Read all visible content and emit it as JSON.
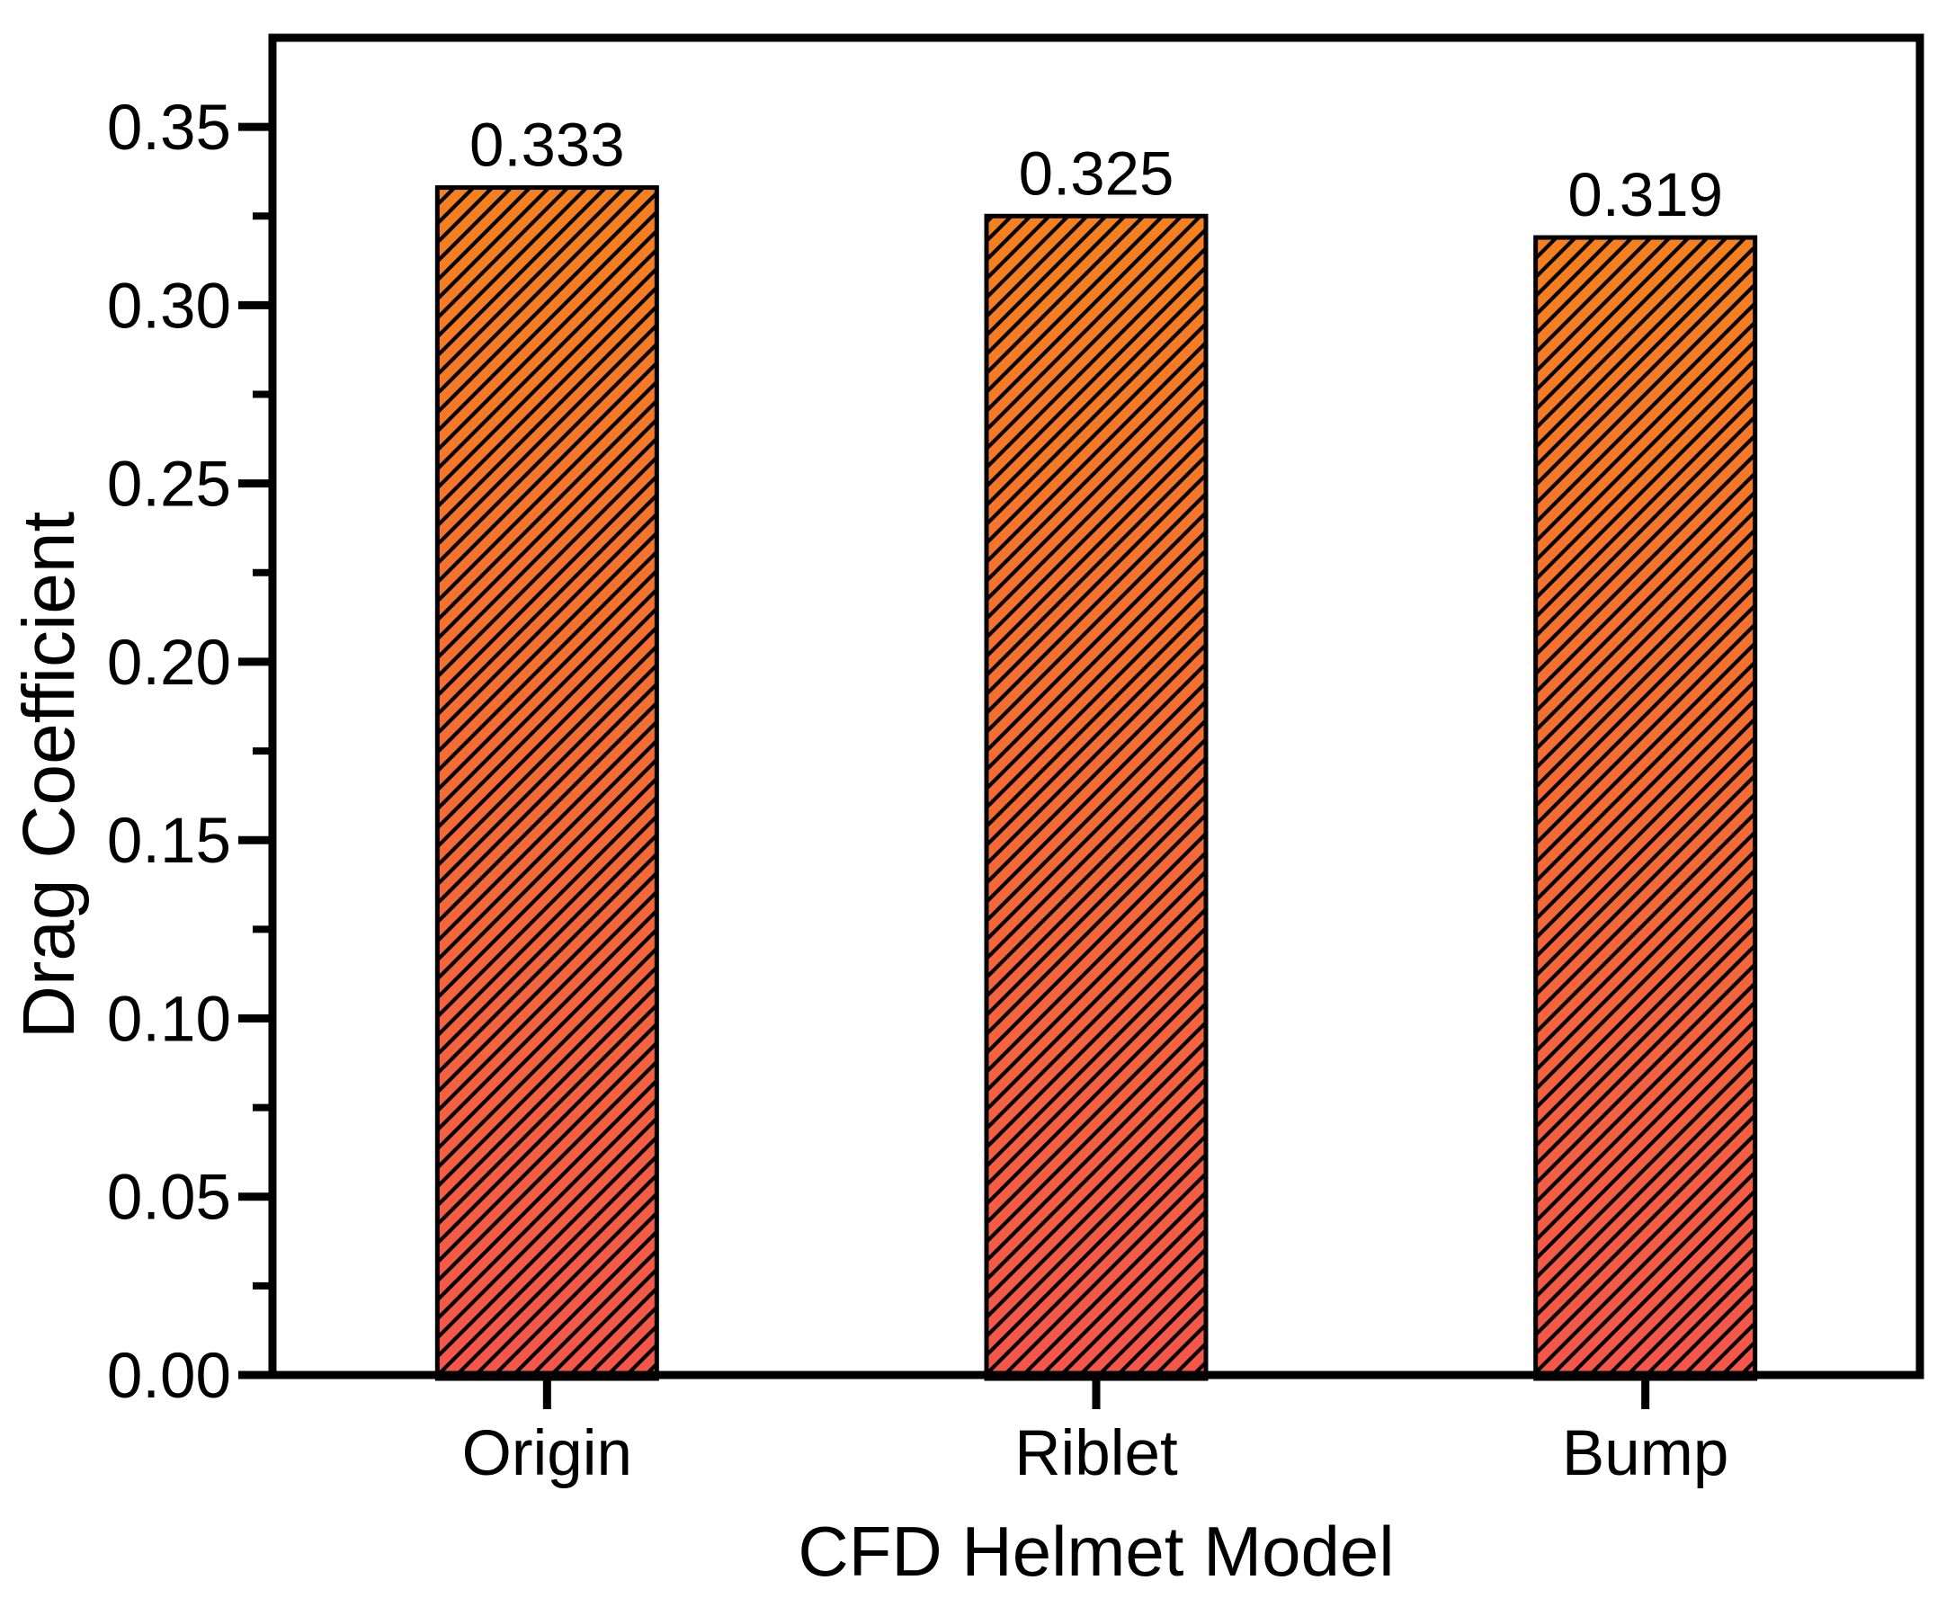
{
  "chart_data": {
    "type": "bar",
    "title": "",
    "xlabel": "CFD Helmet Model",
    "ylabel": "Drag Coefficient",
    "categories": [
      "Origin",
      "Riblet",
      "Bump"
    ],
    "values": [
      0.333,
      0.325,
      0.319
    ],
    "value_labels": [
      "0.333",
      "0.325",
      "0.319"
    ],
    "ylim": [
      0,
      0.375
    ],
    "ytick_step": 0.05,
    "ytick_minor_step": 0.025,
    "ytick_labels": [
      "0.00",
      "0.05",
      "0.10",
      "0.15",
      "0.20",
      "0.25",
      "0.30",
      "0.35"
    ],
    "grid": "off",
    "legend": "none",
    "bar_style": {
      "fill_top_color": "#F5801F",
      "fill_bottom_color": "#F4564A",
      "hatch": "diagonal-forward",
      "hatch_color": "#000000",
      "border_color": "#000000"
    },
    "axis_color": "#000000",
    "background_color": "#ffffff"
  }
}
